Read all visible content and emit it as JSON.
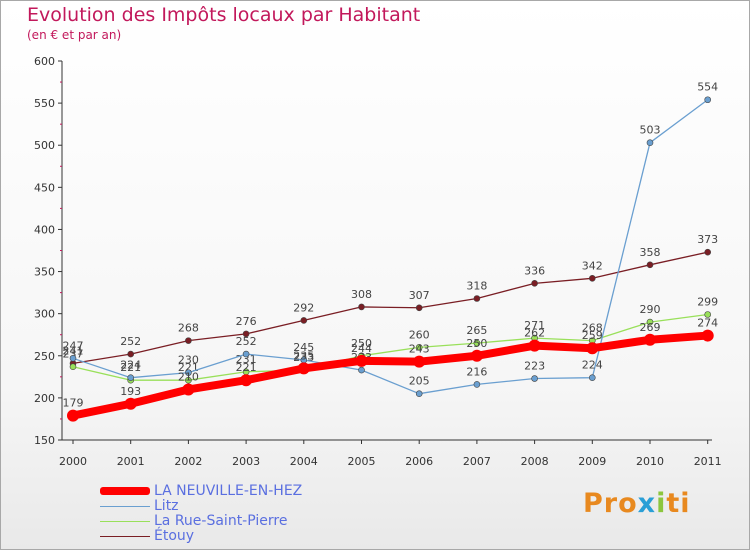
{
  "chart_data": {
    "type": "line",
    "title": "Evolution des Impôts locaux par Habitant",
    "subtitle": "(en € et par an)",
    "xlabel": "",
    "ylabel": "",
    "ylim": [
      150,
      600
    ],
    "yticks": [
      150,
      200,
      250,
      300,
      350,
      400,
      450,
      500,
      550,
      600
    ],
    "x": [
      "2000",
      "2001",
      "2002",
      "2003",
      "2004",
      "2005",
      "2006",
      "2007",
      "2008",
      "2009",
      "2010",
      "2011"
    ],
    "grid": false,
    "legend_position": "bottom-left",
    "series": [
      {
        "name": "Étouy",
        "color": "#7a1e24",
        "values": [
          241,
          252,
          268,
          276,
          292,
          308,
          307,
          318,
          336,
          342,
          358,
          373
        ]
      },
      {
        "name": "La Rue-Saint-Pierre",
        "color": "#99e05a",
        "values": [
          237,
          221,
          221,
          231,
          233,
          250,
          260,
          265,
          271,
          268,
          290,
          299
        ]
      },
      {
        "name": "Litz",
        "color": "#6a9fd0",
        "values": [
          247,
          224,
          230,
          252,
          245,
          233,
          205,
          216,
          223,
          224,
          503,
          554
        ]
      },
      {
        "name": "LA NEUVILLE-EN-HEZ",
        "color": "#ff0000",
        "values": [
          179,
          193,
          210,
          221,
          235,
          244,
          243,
          250,
          262,
          259,
          269,
          274
        ]
      }
    ]
  },
  "legend": [
    {
      "label": "LA NEUVILLE-EN-HEZ",
      "color": "#ff0000"
    },
    {
      "label": "Litz",
      "color": "#6a9fd0"
    },
    {
      "label": "La Rue-Saint-Pierre",
      "color": "#99e05a"
    },
    {
      "label": "Étouy",
      "color": "#7a1e24"
    }
  ],
  "branding": {
    "logo_parts": [
      "Pro",
      "x",
      "i",
      "ti"
    ]
  }
}
